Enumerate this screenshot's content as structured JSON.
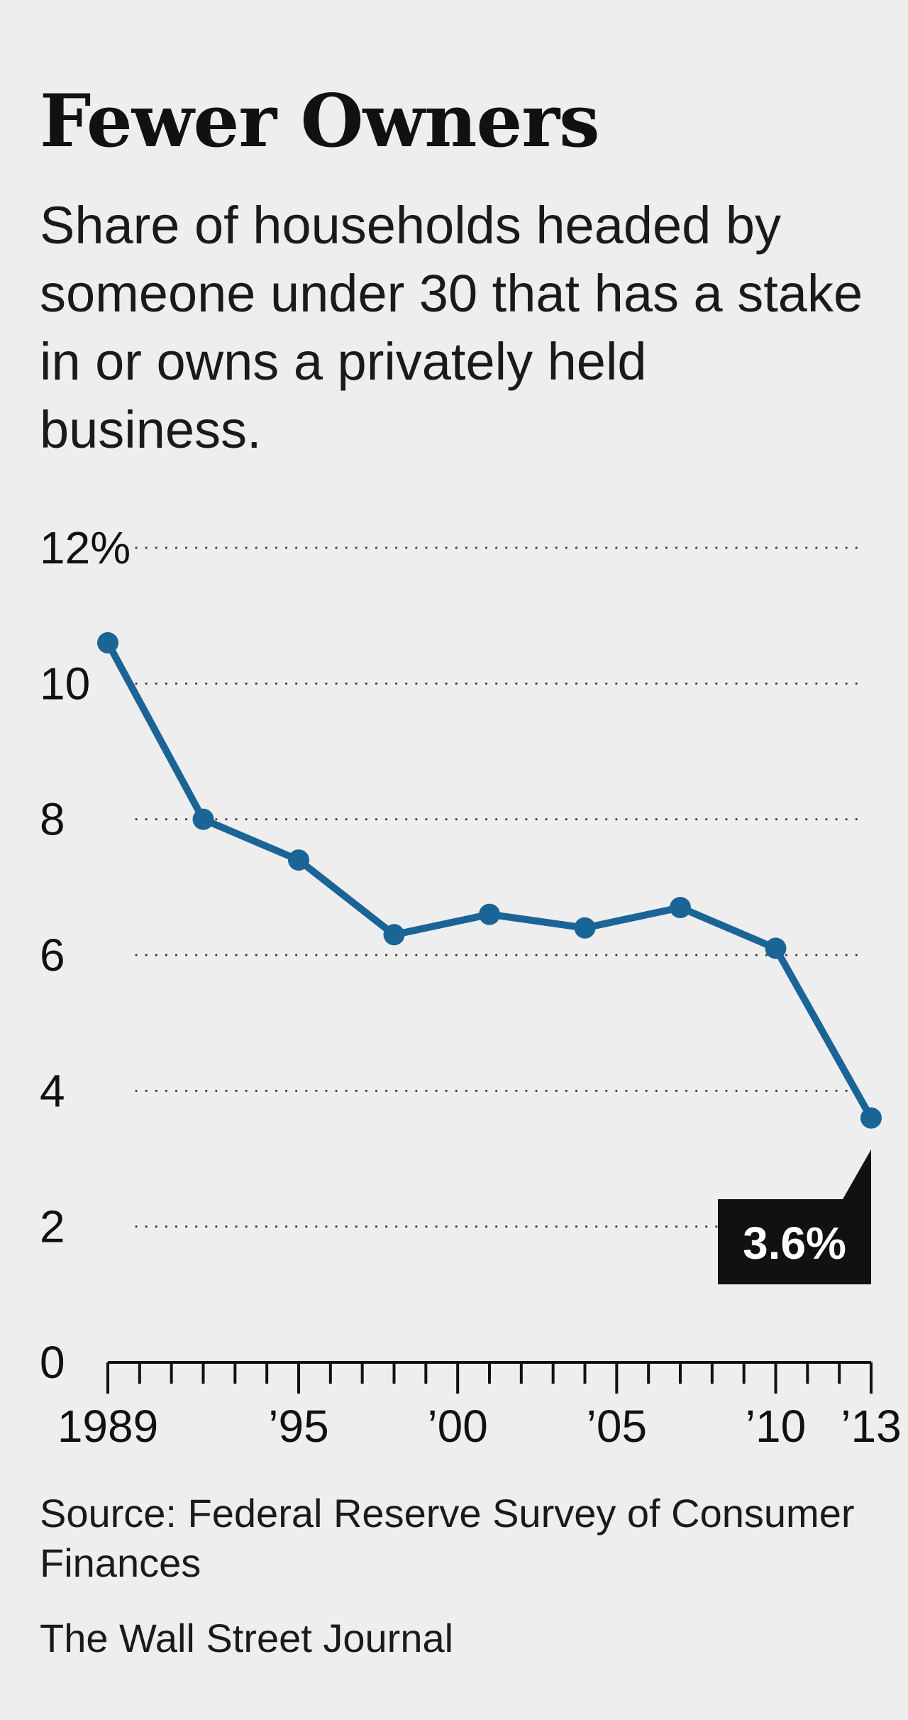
{
  "chart_data": {
    "type": "line",
    "title": "Fewer Owners",
    "subtitle": "Share of households headed by someone under 30 that has a stake in or owns a privately held business.",
    "x": [
      1989,
      1992,
      1995,
      1998,
      2001,
      2004,
      2007,
      2010,
      2013
    ],
    "values": [
      10.6,
      8.0,
      7.4,
      6.3,
      6.6,
      6.4,
      6.7,
      6.1,
      3.6
    ],
    "ylim": [
      0,
      12
    ],
    "xlim": [
      1989,
      2013
    ],
    "y_ticks": [
      0,
      2,
      4,
      6,
      8,
      10,
      12
    ],
    "y_tick_labels": [
      "0",
      "2",
      "4",
      "6",
      "8",
      "10",
      "12%"
    ],
    "x_tick_labels": [
      {
        "year": 1989,
        "label": "1989"
      },
      {
        "year": 1995,
        "label": "’95"
      },
      {
        "year": 2000,
        "label": "’00"
      },
      {
        "year": 2005,
        "label": "’05"
      },
      {
        "year": 2010,
        "label": "’10"
      },
      {
        "year": 2013,
        "label": "’13"
      }
    ],
    "annotation": {
      "year": 2013,
      "text": "3.6%"
    },
    "grid": true,
    "line_color": "#1a6496",
    "annotation_bg": "#111111",
    "annotation_color": "#ffffff"
  },
  "source": "Source: Federal Reserve Survey of Consumer Finances",
  "credit": "The Wall Street Journal"
}
